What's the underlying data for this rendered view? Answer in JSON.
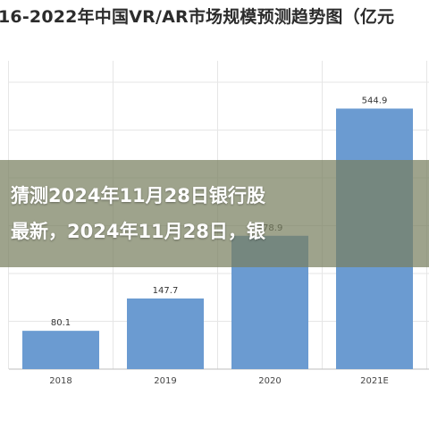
{
  "chart_data": {
    "type": "bar",
    "title": "16-2022年中国VR/AR市场规模预测趋势图（亿元",
    "categories": [
      "2018",
      "2019",
      "2020",
      "2021E"
    ],
    "values": [
      80.1,
      147.7,
      278.9,
      544.9
    ],
    "value_labels": [
      "80.1",
      "147.7",
      "278.9",
      "544.9"
    ],
    "ylim": [
      0,
      600
    ],
    "grid": true,
    "bar_color": "#6b9bd1",
    "grid_color": "#e6e6e6"
  },
  "overlay": {
    "line1": "猜测2024年11月28日银行股",
    "line2": "最新，2024年11月28日，银"
  }
}
